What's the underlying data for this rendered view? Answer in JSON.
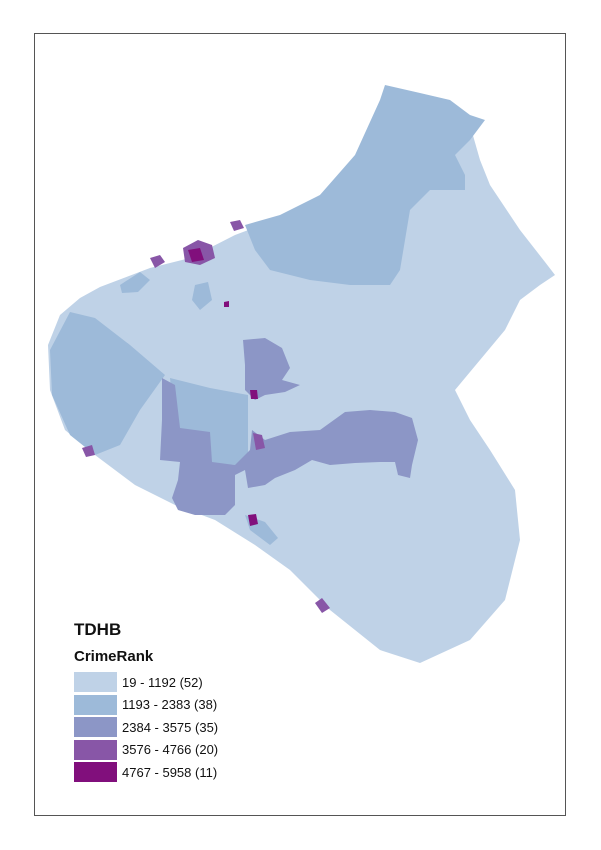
{
  "map": {
    "title": "TDHB",
    "field_name": "CrimeRank",
    "classes": [
      {
        "label": "19 - 1192 (52)",
        "color": "#bfd2e7"
      },
      {
        "label": "1193 - 2383 (38)",
        "color": "#9dbad9"
      },
      {
        "label": "2384 - 3575 (35)",
        "color": "#8c96c6"
      },
      {
        "label": "3576 - 4766 (20)",
        "color": "#8856a7"
      },
      {
        "label": "4767 - 5958 (11)",
        "color": "#810f7c"
      }
    ]
  }
}
